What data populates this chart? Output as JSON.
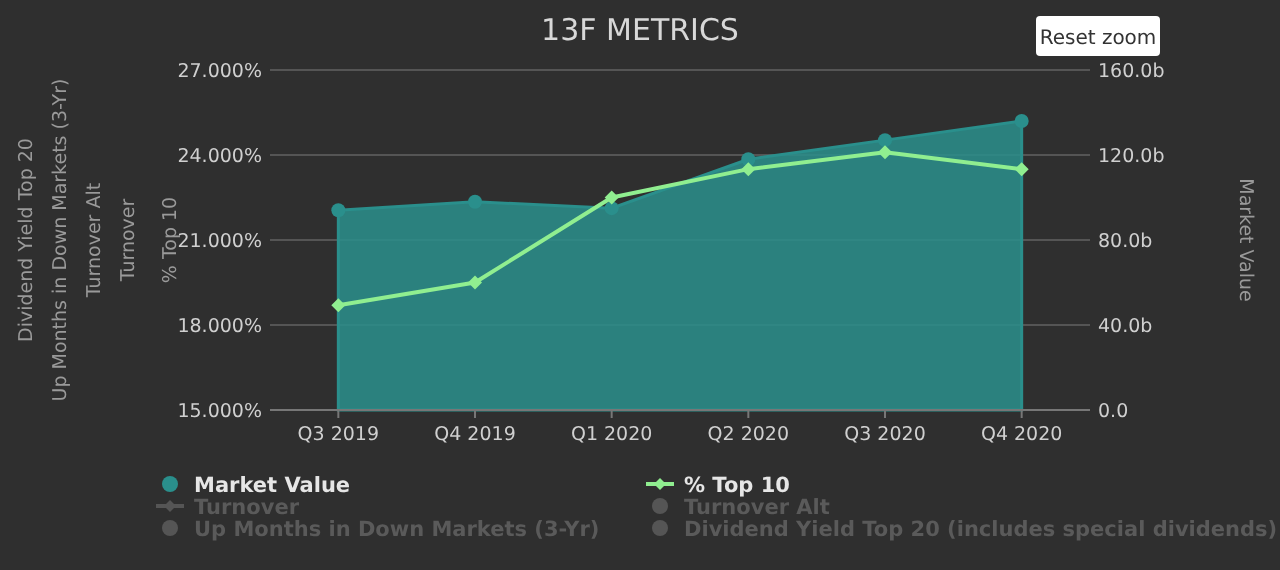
{
  "chart_data": {
    "type": "line",
    "title": "13F METRICS",
    "ylabel": "% Top 10",
    "y2label": "Market Value",
    "annotations": [
      "Dividend Yield Top 20",
      "Up Months in Down Markets (3-Yr)",
      "Turnover Alt",
      "Turnover",
      "Reset zoom"
    ],
    "categories": [
      "Q3 2019",
      "Q4 2019",
      "Q1 2020",
      "Q2 2020",
      "Q3 2020",
      "Q4 2020"
    ],
    "ylim": [
      15,
      27
    ],
    "yticks": [
      {
        "value": 15,
        "label": "15.000%"
      },
      {
        "value": 18,
        "label": "18.000%"
      },
      {
        "value": 21,
        "label": "21.000%"
      },
      {
        "value": 24,
        "label": "24.000%"
      },
      {
        "value": 27,
        "label": "27.000%"
      }
    ],
    "y2lim": [
      0,
      160
    ],
    "y2ticks": [
      {
        "value": 0,
        "label": "0.0"
      },
      {
        "value": 40,
        "label": "40.0b"
      },
      {
        "value": 80,
        "label": "80.0b"
      },
      {
        "value": 120,
        "label": "120.0b"
      },
      {
        "value": 160,
        "label": "160.0b"
      }
    ],
    "grid": "y",
    "legend": "bottom",
    "series": [
      {
        "name": "Market Value",
        "type": "area",
        "axis": "y2",
        "color": "#2a8f8c",
        "marker": "circle",
        "values": [
          94,
          98,
          95,
          118,
          127,
          136
        ]
      },
      {
        "name": "% Top 10",
        "color": "#90ee90",
        "marker": "diamond",
        "values": [
          18.7,
          19.5,
          22.5,
          23.5,
          24.1,
          23.5
        ]
      },
      {
        "name": "Turnover",
        "color": "#555555",
        "marker": "diamond",
        "values": [
          null,
          null,
          null,
          null,
          null,
          null
        ]
      },
      {
        "name": "Turnover Alt",
        "type": "scatter",
        "color": "#555555",
        "marker": "circle",
        "values": [
          null,
          null,
          null,
          null,
          null,
          null
        ]
      },
      {
        "name": "Up Months in Down Markets (3-Yr)",
        "type": "scatter",
        "color": "#555555",
        "marker": "circle",
        "values": [
          null,
          null,
          null,
          null,
          null,
          null
        ]
      },
      {
        "name": "Dividend Yield Top 20 (includes special dividends)",
        "type": "scatter",
        "color": "#555555",
        "marker": "circle",
        "values": [
          null,
          null,
          null,
          null,
          null,
          null
        ]
      }
    ]
  }
}
